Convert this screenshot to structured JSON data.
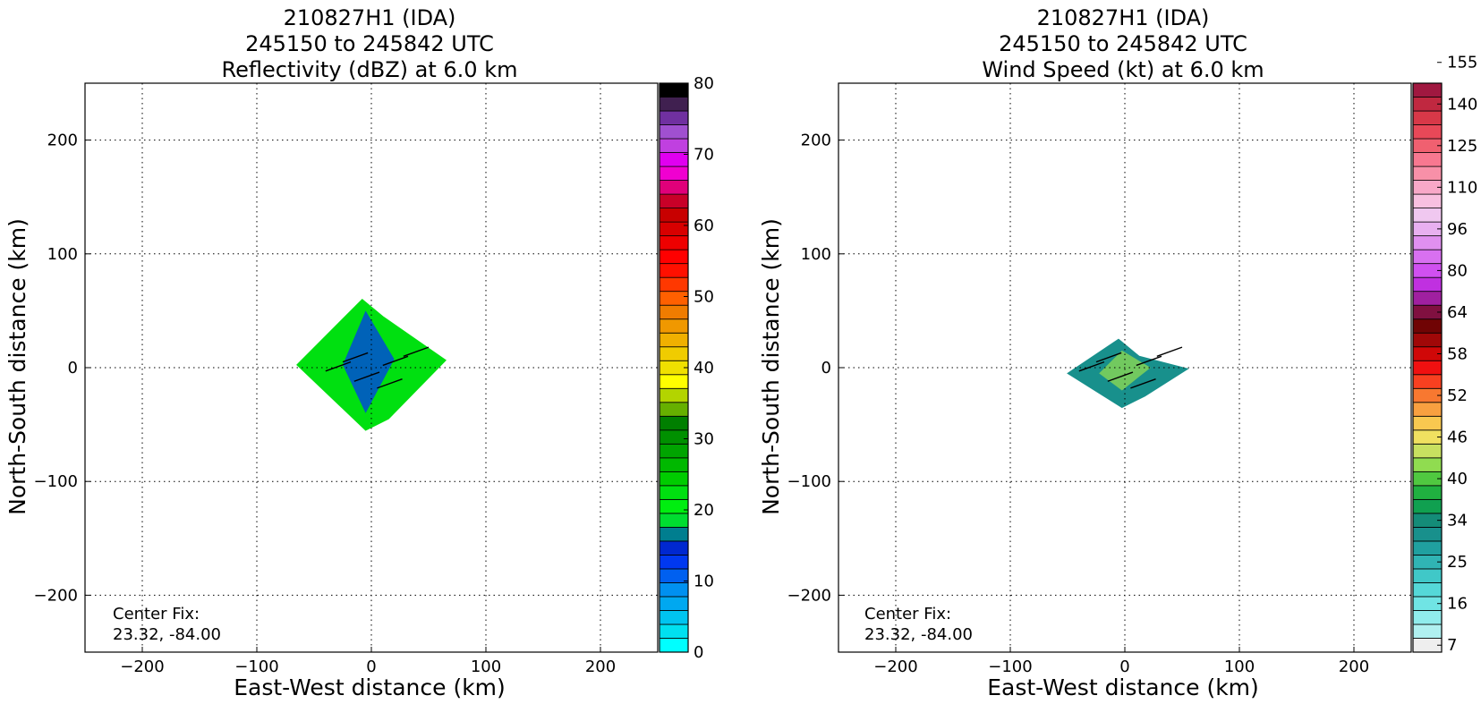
{
  "chart_data": [
    {
      "type": "heatmap",
      "title": [
        "210827H1 (IDA)",
        "245150 to 245842 UTC",
        "Reflectivity (dBZ) at 6.0 km"
      ],
      "xlabel": "East-West distance (km)",
      "ylabel": "North-South distance (km)",
      "xlim": [
        -250,
        250
      ],
      "ylim": [
        -250,
        250
      ],
      "xticks": [
        -200,
        -100,
        0,
        100,
        200
      ],
      "yticks": [
        -200,
        -100,
        0,
        100,
        200
      ],
      "grid": true,
      "annotation": [
        "Center Fix:",
        "23.32, -84.00"
      ],
      "echo_extent_km": {
        "x": [
          -65,
          65
        ],
        "y": [
          -55,
          60
        ]
      },
      "colorbar": {
        "min": 0,
        "max": 80,
        "ticks": [
          0,
          10,
          20,
          30,
          40,
          50,
          60,
          70,
          80
        ],
        "colors": [
          "#00ffff",
          "#00e0f0",
          "#00c4f0",
          "#00a8f0",
          "#0090f0",
          "#0060f0",
          "#0038f0",
          "#0028d0",
          "#007e8f",
          "#00dd30",
          "#00ee10",
          "#00e010",
          "#00cc00",
          "#00b800",
          "#00a400",
          "#009000",
          "#007f00",
          "#66b000",
          "#b3d400",
          "#ffff00",
          "#f0e000",
          "#f0cc00",
          "#f0b000",
          "#f09800",
          "#f07c00",
          "#ff6000",
          "#ff3800",
          "#ff1000",
          "#ff0000",
          "#ee0000",
          "#d80000",
          "#c80000",
          "#c80028",
          "#e0007a",
          "#f000d0",
          "#e000f0",
          "#c040e0",
          "#a050d0",
          "#7030a0",
          "#402050",
          "#000000"
        ]
      }
    },
    {
      "type": "heatmap",
      "title": [
        "210827H1 (IDA)",
        "245150 to 245842 UTC",
        "Wind Speed (kt) at 6.0 km"
      ],
      "xlabel": "East-West distance (km)",
      "ylabel": "North-South distance (km)",
      "xlim": [
        -250,
        250
      ],
      "ylim": [
        -250,
        250
      ],
      "xticks": [
        -200,
        -100,
        0,
        100,
        200
      ],
      "yticks": [
        -200,
        -100,
        0,
        100,
        200
      ],
      "grid": true,
      "annotation": [
        "Center Fix:",
        "23.32, -84.00"
      ],
      "echo_extent_km": {
        "x": [
          -50,
          55
        ],
        "y": [
          -35,
          25
        ]
      },
      "colorbar": {
        "ticks": [
          "7",
          "16",
          "25",
          "34",
          "40",
          "46",
          "52",
          "58",
          "64",
          "80",
          "96",
          "110",
          "125",
          "140",
          "155"
        ],
        "colors": [
          "#eeeeee",
          "#b0f0f0",
          "#90ecec",
          "#70e4e4",
          "#55d8d8",
          "#40c8c8",
          "#30b4b4",
          "#20a0a0",
          "#18908c",
          "#148c78",
          "#10a050",
          "#20b040",
          "#50c840",
          "#90dc50",
          "#c8e060",
          "#f0e060",
          "#f8c850",
          "#f8a040",
          "#f87830",
          "#f84020",
          "#f01010",
          "#d00808",
          "#a00808",
          "#700404",
          "#801040",
          "#a020a0",
          "#c030e0",
          "#d050f0",
          "#d870f0",
          "#e090f0",
          "#e8b0f0",
          "#f0c8f0",
          "#f8c0e0",
          "#f8a8c8",
          "#f890a8",
          "#f87890",
          "#f06070",
          "#e84858",
          "#d83848",
          "#c02840",
          "#a01840"
        ]
      }
    }
  ]
}
